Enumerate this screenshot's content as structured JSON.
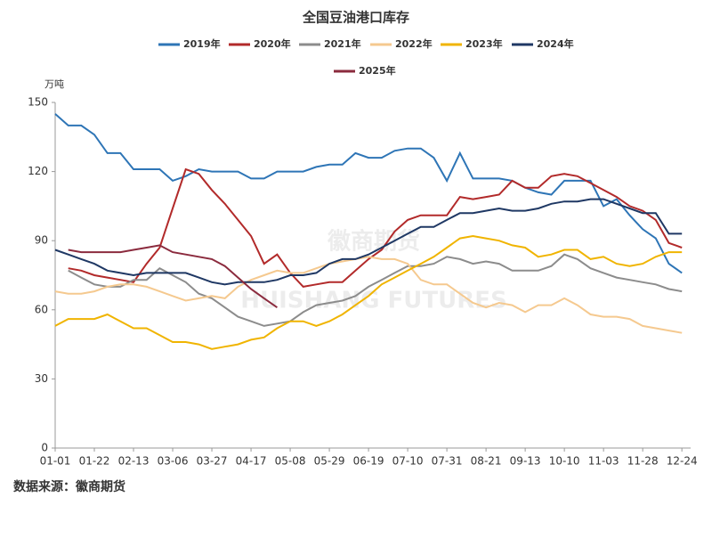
{
  "chart_data": {
    "type": "line",
    "title": "全国豆油港口库存",
    "y_unit": "万吨",
    "source": "数据来源：徽商期货",
    "watermark": [
      "徽商期货",
      "HUISHANG FUTURES"
    ],
    "categories": [
      "01-01",
      null,
      null,
      "01-22",
      null,
      null,
      "02-13",
      null,
      null,
      "03-06",
      null,
      null,
      "03-27",
      null,
      null,
      "04-17",
      null,
      null,
      "05-08",
      null,
      null,
      "05-29",
      null,
      null,
      "06-19",
      null,
      null,
      "07-10",
      null,
      null,
      "07-31",
      null,
      null,
      "08-21",
      null,
      null,
      "09-13",
      null,
      null,
      "10-10",
      null,
      null,
      "11-03",
      null,
      null,
      "11-28",
      null,
      null,
      "12-24"
    ],
    "ylim": [
      0,
      150
    ],
    "yticks": [
      0,
      30,
      60,
      90,
      120,
      150
    ],
    "grid": false,
    "series": [
      {
        "name": "2019年",
        "color": "#2e75b6",
        "values": [
          145,
          140,
          140,
          136,
          128,
          128,
          121,
          121,
          121,
          116,
          118,
          121,
          120,
          120,
          120,
          117,
          117,
          120,
          120,
          120,
          122,
          123,
          123,
          128,
          126,
          126,
          129,
          130,
          130,
          126,
          116,
          128,
          117,
          117,
          117,
          116,
          113,
          111,
          110,
          116,
          116,
          116,
          105,
          108,
          101,
          95,
          91,
          80,
          76
        ]
      },
      {
        "name": "2020年",
        "color": "#b22a2a",
        "values": [
          null,
          78,
          77,
          75,
          74,
          73,
          72,
          80,
          87,
          104,
          121,
          119,
          112,
          106,
          99,
          92,
          80,
          84,
          76,
          70,
          71,
          72,
          72,
          77,
          82,
          86,
          94,
          99,
          101,
          101,
          101,
          109,
          108,
          109,
          110,
          116,
          113,
          113,
          118,
          119,
          118,
          115,
          112,
          109,
          105,
          103,
          99,
          89,
          87
        ]
      },
      {
        "name": "2021年",
        "color": "#8c8c8c",
        "values": [
          null,
          77,
          74,
          71,
          70,
          70,
          73,
          73,
          78,
          75,
          72,
          67,
          65,
          61,
          57,
          55,
          53,
          54,
          55,
          59,
          62,
          63,
          64,
          66,
          70,
          73,
          76,
          79,
          79,
          80,
          83,
          82,
          80,
          81,
          80,
          77,
          77,
          77,
          79,
          84,
          82,
          78,
          76,
          74,
          73,
          72,
          71,
          69,
          68
        ]
      },
      {
        "name": "2022年",
        "color": "#f5c98f",
        "values": [
          68,
          67,
          67,
          68,
          70,
          71,
          71,
          70,
          68,
          66,
          64,
          65,
          66,
          65,
          70,
          73,
          75,
          77,
          76,
          76,
          78,
          80,
          81,
          82,
          83,
          82,
          82,
          80,
          73,
          71,
          71,
          67,
          63,
          61,
          63,
          62,
          59,
          62,
          62,
          65,
          62,
          58,
          57,
          57,
          56,
          53,
          52,
          51,
          50
        ]
      },
      {
        "name": "2023年",
        "color": "#f0b400",
        "values": [
          53,
          56,
          56,
          56,
          58,
          55,
          52,
          52,
          49,
          46,
          46,
          45,
          43,
          44,
          45,
          47,
          48,
          52,
          55,
          55,
          53,
          55,
          58,
          62,
          66,
          71,
          74,
          77,
          80,
          83,
          87,
          91,
          92,
          91,
          90,
          88,
          87,
          83,
          84,
          86,
          86,
          82,
          83,
          80,
          79,
          80,
          83,
          85,
          85
        ]
      },
      {
        "name": "2024年",
        "color": "#1f3864",
        "values": [
          86,
          84,
          82,
          80,
          77,
          76,
          75,
          76,
          76,
          76,
          76,
          74,
          72,
          71,
          72,
          72,
          72,
          73,
          75,
          75,
          76,
          80,
          82,
          82,
          84,
          87,
          90,
          93,
          96,
          96,
          99,
          102,
          102,
          103,
          104,
          103,
          103,
          104,
          106,
          107,
          107,
          108,
          108,
          106,
          104,
          102,
          102,
          93,
          93
        ]
      },
      {
        "name": "2025年",
        "color": "#8b2b3e",
        "values": [
          null,
          86,
          85,
          85,
          85,
          85,
          86,
          87,
          88,
          85,
          84,
          83,
          82,
          79,
          74,
          69,
          65,
          61,
          null,
          null,
          null,
          null,
          null,
          null,
          null,
          null,
          null,
          null,
          null,
          null,
          null,
          null,
          null,
          null,
          null,
          null,
          null,
          null,
          null,
          null,
          null,
          null,
          null,
          null,
          null,
          null,
          null,
          null,
          null
        ]
      }
    ]
  }
}
